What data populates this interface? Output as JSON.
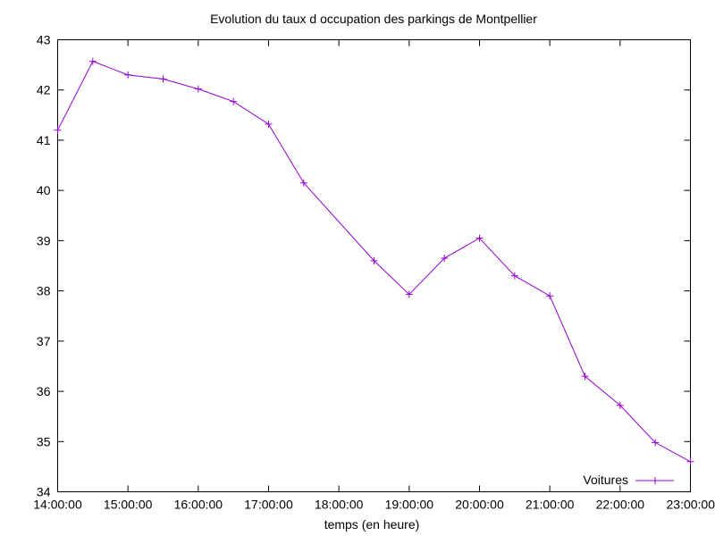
{
  "chart_data": {
    "type": "line",
    "title": "Evolution du taux d occupation des parkings de Montpellier",
    "xlabel": "temps (en heure)",
    "ylabel": "",
    "x": [
      "14:00:00",
      "14:30:00",
      "15:00:00",
      "15:30:00",
      "16:00:00",
      "16:30:00",
      "17:00:00",
      "17:30:00",
      "18:30:00",
      "19:00:00",
      "19:30:00",
      "20:00:00",
      "20:30:00",
      "21:00:00",
      "21:30:00",
      "22:00:00",
      "22:30:00",
      "23:00:00"
    ],
    "x_tick_labels": [
      "14:00:00",
      "15:00:00",
      "16:00:00",
      "17:00:00",
      "18:00:00",
      "19:00:00",
      "20:00:00",
      "21:00:00",
      "22:00:00",
      "23:00:00"
    ],
    "xlim": [
      "14:00:00",
      "23:00:00"
    ],
    "y_tick_labels": [
      "34",
      "35",
      "36",
      "37",
      "38",
      "39",
      "40",
      "41",
      "42",
      "43"
    ],
    "ylim": [
      34,
      43
    ],
    "grid": false,
    "legend_position": "bottom-right",
    "series": [
      {
        "name": "Voitures",
        "color": "#9400d3",
        "marker": "plus",
        "values": [
          41.2,
          42.57,
          42.3,
          42.22,
          42.02,
          41.77,
          41.32,
          40.15,
          38.6,
          37.93,
          38.65,
          39.05,
          38.3,
          37.9,
          36.3,
          35.72,
          34.98,
          34.6
        ]
      }
    ]
  }
}
